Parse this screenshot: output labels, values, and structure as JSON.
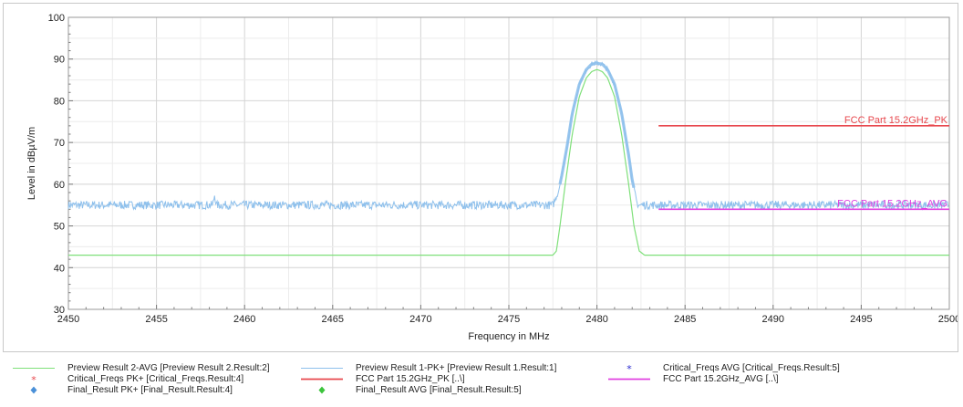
{
  "chart_data": {
    "type": "line",
    "xlabel": "Frequency in MHz",
    "ylabel": "Level in dBµV/m",
    "xlim": [
      2450,
      2500
    ],
    "ylim": [
      30,
      100
    ],
    "x_ticks": [
      "2450",
      "2455",
      "2460",
      "2465",
      "2470",
      "2475",
      "2480",
      "2485",
      "2490",
      "2495",
      "2500"
    ],
    "y_ticks": [
      "30",
      "40",
      "50",
      "60",
      "70",
      "80",
      "90",
      "100"
    ],
    "grid": true,
    "series": [
      {
        "name": "Preview Result 1-PK+",
        "color": "#8ec0ec",
        "x": [
          2450,
          2458.2,
          2458.3,
          2458.4,
          2477.5,
          2477.8,
          2478.0,
          2478.3,
          2478.6,
          2479.0,
          2479.4,
          2479.7,
          2480.0,
          2480.3,
          2480.6,
          2481.0,
          2481.4,
          2481.8,
          2482.0,
          2482.3,
          2500
        ],
        "values": [
          55,
          55,
          57.5,
          55,
          55,
          58,
          62,
          69,
          77,
          84,
          87.5,
          88.8,
          89,
          88.8,
          87.5,
          84,
          77,
          67,
          61,
          55,
          55
        ],
        "noise": "approx ±1 dB fluctuation"
      },
      {
        "name": "Preview Result 2-AVG",
        "color": "#7fe07a",
        "x": [
          2450,
          2477.5,
          2477.7,
          2477.9,
          2478.2,
          2478.6,
          2479.0,
          2479.4,
          2479.7,
          2480.0,
          2480.3,
          2480.6,
          2481.0,
          2481.4,
          2481.8,
          2482.1,
          2482.4,
          2482.7,
          2500
        ],
        "values": [
          43,
          43,
          44,
          50,
          60,
          72,
          81,
          85.5,
          87,
          87.5,
          87,
          85.5,
          81,
          72,
          60,
          50,
          44,
          43,
          43
        ]
      },
      {
        "name": "FCC Part 15.2GHz_PK",
        "color": "#e8484e",
        "x": [
          2483.5,
          2500
        ],
        "values": [
          74,
          74
        ]
      },
      {
        "name": "FCC Part 15.2GHz_AVG",
        "color": "#e040e0",
        "x": [
          2483.5,
          2500
        ],
        "values": [
          54,
          54
        ]
      }
    ],
    "annotations": [
      {
        "text": "FCC Part 15.2GHz_PK",
        "x": 2500,
        "y": 74,
        "color": "#e8484e"
      },
      {
        "text": "FCC Part 15.2GHz_AVG",
        "x": 2500,
        "y": 54,
        "color": "#e040e0"
      }
    ],
    "legend": {
      "placement": "bottom",
      "entries": [
        {
          "text": "Preview Result 2-AVG   [Preview Result 2.Result:2]",
          "symbol": "line",
          "color": "#7fe07a"
        },
        {
          "text": "Preview Result 1-PK+   [Preview Result 1.Result:1]",
          "symbol": "line",
          "color": "#8ec0ec"
        },
        {
          "text": "Critical_Freqs AVG   [Critical_Freqs.Result:5]",
          "symbol": "star",
          "color": "#2a2ad0"
        },
        {
          "text": "Critical_Freqs PK+   [Critical_Freqs.Result:4]",
          "symbol": "star",
          "color": "#e8484e"
        },
        {
          "text": "FCC Part 15.2GHz_PK   [..\\]",
          "symbol": "line",
          "color": "#e8484e"
        },
        {
          "text": "FCC Part 15.2GHz_AVG   [..\\]",
          "symbol": "line",
          "color": "#e040e0"
        },
        {
          "text": "Final_Result PK+   [Final_Result.Result:4]",
          "symbol": "diamond",
          "color": "#4a90d8"
        },
        {
          "text": "Final_Result AVG   [Final_Result.Result:5]",
          "symbol": "diamond",
          "color": "#3cc43c"
        }
      ]
    }
  }
}
